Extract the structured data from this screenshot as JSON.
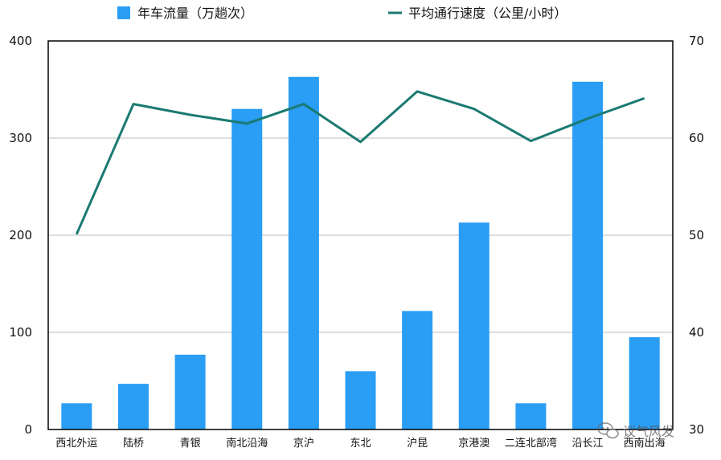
{
  "chart_data": {
    "type": "bar+line",
    "categories": [
      "西北外运",
      "陆桥",
      "青银",
      "南北沿海",
      "京沪",
      "东北",
      "沪昆",
      "京港澳",
      "二连北部湾",
      "沿长江",
      "西南出海"
    ],
    "series": [
      {
        "name": "年车流量（万趟次）",
        "type": "bar",
        "axis": "left",
        "color": "#2a9df4",
        "values": [
          27,
          47,
          77,
          330,
          363,
          60,
          122,
          213,
          27,
          358,
          95
        ]
      },
      {
        "name": "平均通行速度（公里/小时）",
        "type": "line",
        "axis": "right",
        "color": "#1a7a72",
        "values": [
          50.1,
          63.5,
          62.4,
          61.5,
          63.5,
          59.6,
          64.8,
          63.0,
          59.7,
          62.0,
          64.1
        ]
      }
    ],
    "y_left": {
      "ylim": [
        0,
        400
      ],
      "ticks": [
        "0",
        "100",
        "200",
        "300",
        "400"
      ]
    },
    "y_right": {
      "ylim": [
        30,
        70
      ],
      "ticks": [
        "30",
        "40",
        "50",
        "60",
        "70"
      ]
    },
    "grid": true,
    "legend_position": "top"
  },
  "watermark": {
    "text": "议气风发",
    "icon": "wechat-icon"
  }
}
